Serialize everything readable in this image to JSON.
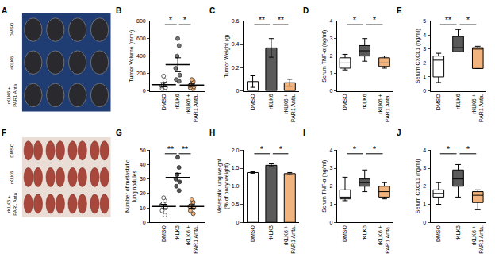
{
  "images": [
    {
      "panel": "A",
      "row_labels": [
        "DMSO",
        "rKLK6",
        "rKLK6 + PAR1 Anta"
      ]
    },
    {
      "panel": "F",
      "row_labels": [
        "DMSO",
        "rKLK6",
        "rKLK6 + PAR1 Anta"
      ]
    }
  ],
  "chart_data": [
    {
      "panel": "B",
      "type": "scatter",
      "y_label": "Tumor Volume (mm³)",
      "categories": [
        "DMSO",
        "rKLK6",
        "rKLK6 + PAR1 Anta."
      ],
      "colors": [
        "#ffffff",
        "#777777",
        "#f2b47e"
      ],
      "points": [
        [
          10,
          25,
          40,
          55,
          70,
          120,
          170
        ],
        [
          110,
          130,
          180,
          260,
          400,
          520,
          600
        ],
        [
          20,
          35,
          45,
          60,
          80,
          110,
          130
        ]
      ],
      "mean": [
        70,
        300,
        65
      ],
      "error": [
        25,
        80,
        15
      ],
      "ylim": [
        0,
        800
      ],
      "yticks": [
        0,
        200,
        400,
        600,
        800
      ],
      "significance": [
        {
          "pair": [
            "DMSO",
            "rKLK6"
          ],
          "label": "*"
        },
        {
          "pair": [
            "rKLK6",
            "rKLK6 + PAR1 Anta."
          ],
          "label": "*"
        }
      ]
    },
    {
      "panel": "C",
      "type": "bar",
      "y_label": "Tumor Weight (g)",
      "categories": [
        "DMSO",
        "rKLK6",
        "rKLK6 + PAR1 Anta."
      ],
      "colors": [
        "#ffffff",
        "#5a5a5a",
        "#f2b47e"
      ],
      "values": [
        0.08,
        0.37,
        0.07
      ],
      "error": [
        0.05,
        0.08,
        0.03
      ],
      "ylim": [
        0,
        0.6
      ],
      "yticks": [
        0,
        0.2,
        0.4,
        0.6
      ],
      "significance": [
        {
          "pair": [
            "DMSO",
            "rKLK6"
          ],
          "label": "**"
        },
        {
          "pair": [
            "rKLK6",
            "rKLK6 + PAR1 Anta."
          ],
          "label": "**"
        }
      ]
    },
    {
      "panel": "D",
      "type": "box",
      "y_label": "Serum TNF-α (ng/ml)",
      "categories": [
        "DMSO",
        "rKLK6",
        "rKLK6 + PAR1 Anta."
      ],
      "colors": [
        "#ffffff",
        "#5a5a5a",
        "#f2b47e"
      ],
      "boxes": [
        {
          "min": 1.2,
          "q1": 1.3,
          "median": 1.6,
          "q3": 1.9,
          "max": 2.1
        },
        {
          "min": 1.7,
          "q1": 2.0,
          "median": 2.3,
          "q3": 2.6,
          "max": 3.0
        },
        {
          "min": 1.3,
          "q1": 1.4,
          "median": 1.6,
          "q3": 1.9,
          "max": 2.0
        }
      ],
      "ylim": [
        0,
        4
      ],
      "yticks": [
        0,
        1,
        2,
        3,
        4
      ],
      "significance": [
        {
          "pair": [
            "DMSO",
            "rKLK6"
          ],
          "label": "*"
        },
        {
          "pair": [
            "rKLK6",
            "rKLK6 + PAR1 Anta."
          ],
          "label": "*"
        }
      ]
    },
    {
      "panel": "E",
      "type": "box",
      "y_label": "Serum CXCL1 (ng/ml)",
      "categories": [
        "DMSO",
        "rKLK6",
        "rKLK6 + PAR1 Anta."
      ],
      "colors": [
        "#ffffff",
        "#5a5a5a",
        "#f2b47e"
      ],
      "boxes": [
        {
          "min": 0.6,
          "q1": 1.0,
          "median": 2.2,
          "q3": 2.5,
          "max": 2.7
        },
        {
          "min": 2.8,
          "q1": 2.8,
          "median": 3.1,
          "q3": 3.9,
          "max": 4.4
        },
        {
          "min": 1.6,
          "q1": 1.6,
          "median": 3.0,
          "q3": 3.1,
          "max": 3.2
        }
      ],
      "ylim": [
        0,
        5
      ],
      "yticks": [
        0,
        1,
        2,
        3,
        4,
        5
      ],
      "significance": [
        {
          "pair": [
            "DMSO",
            "rKLK6"
          ],
          "label": "**"
        },
        {
          "pair": [
            "rKLK6",
            "rKLK6 + PAR1 Anta."
          ],
          "label": "*"
        }
      ]
    },
    {
      "panel": "G",
      "type": "scatter",
      "y_label": "Number of metastatic lung nodules",
      "categories": [
        "DMSO",
        "rKLK6",
        "rKLK6 + PAR1 Anta."
      ],
      "colors": [
        "#ffffff",
        "#555555",
        "#f2b47e"
      ],
      "points": [
        [
          5,
          8,
          10,
          12,
          13,
          15,
          17
        ],
        [
          22,
          25,
          28,
          30,
          33,
          38,
          45
        ],
        [
          6,
          8,
          10,
          11,
          12,
          14,
          16
        ]
      ],
      "mean": [
        11,
        31,
        11
      ],
      "error": [
        1.5,
        3,
        1.3
      ],
      "ylim": [
        0,
        50
      ],
      "yticks": [
        0,
        10,
        20,
        30,
        40,
        50
      ],
      "significance": [
        {
          "pair": [
            "DMSO",
            "rKLK6"
          ],
          "label": "**"
        },
        {
          "pair": [
            "rKLK6",
            "rKLK6 + PAR1 Anta."
          ],
          "label": "**"
        }
      ]
    },
    {
      "panel": "H",
      "type": "bar",
      "y_label": "Metastatic lung weight (% of body weight)",
      "categories": [
        "DMSO",
        "rKLK6",
        "rKLK6 + PAR1 Anta."
      ],
      "colors": [
        "#ffffff",
        "#5a5a5a",
        "#f2b47e"
      ],
      "values": [
        1.38,
        1.58,
        1.35
      ],
      "error": [
        0.02,
        0.04,
        0.03
      ],
      "ylim": [
        0,
        2
      ],
      "yticks": [
        0,
        0.5,
        {
          "value": 1,
          "label": "1.0"
        },
        1.5,
        {
          "value": 2,
          "label": "2.0"
        }
      ],
      "significance": [
        {
          "pair": [
            "DMSO",
            "rKLK6"
          ],
          "label": "*"
        },
        {
          "pair": [
            "rKLK6",
            "rKLK6 + PAR1 Anta."
          ],
          "label": "*"
        }
      ]
    },
    {
      "panel": "I",
      "type": "box",
      "y_label": "Serum TNF-α (ng/ml)",
      "categories": [
        "DMSO",
        "rKLK6",
        "rKLK6 + PAR1 Anta."
      ],
      "colors": [
        "#ffffff",
        "#5a5a5a",
        "#f2b47e"
      ],
      "boxes": [
        {
          "min": 1.2,
          "q1": 1.3,
          "median": 1.4,
          "q3": 1.8,
          "max": 2.5
        },
        {
          "min": 1.7,
          "q1": 2.0,
          "median": 2.2,
          "q3": 2.4,
          "max": 2.9
        },
        {
          "min": 1.3,
          "q1": 1.4,
          "median": 1.7,
          "q3": 2.0,
          "max": 2.2
        }
      ],
      "ylim": [
        0,
        4
      ],
      "yticks": [
        0,
        1,
        2,
        3,
        4
      ],
      "significance": [
        {
          "pair": [
            "DMSO",
            "rKLK6"
          ],
          "label": "*"
        },
        {
          "pair": [
            "rKLK6",
            "rKLK6 + PAR1 Anta."
          ],
          "label": "*"
        }
      ]
    },
    {
      "panel": "J",
      "type": "box",
      "y_label": "Serum CXCL1 (ng/ml)",
      "categories": [
        "DMSO",
        "rKLK6",
        "rKLK6 + PAR1 Anta."
      ],
      "colors": [
        "#ffffff",
        "#5a5a5a",
        "#f2b47e"
      ],
      "boxes": [
        {
          "min": 1.0,
          "q1": 1.4,
          "median": 1.6,
          "q3": 1.8,
          "max": 2.2
        },
        {
          "min": 1.4,
          "q1": 2.0,
          "median": 2.4,
          "q3": 2.9,
          "max": 3.2
        },
        {
          "min": 0.7,
          "q1": 1.1,
          "median": 1.5,
          "q3": 1.7,
          "max": 1.8
        }
      ],
      "ylim": [
        0,
        4
      ],
      "yticks": [
        0,
        1,
        2,
        3,
        4
      ],
      "significance": [
        {
          "pair": [
            "DMSO",
            "rKLK6"
          ],
          "label": "*"
        },
        {
          "pair": [
            "rKLK6",
            "rKLK6 + PAR1 Anta."
          ],
          "label": "*"
        }
      ]
    }
  ]
}
